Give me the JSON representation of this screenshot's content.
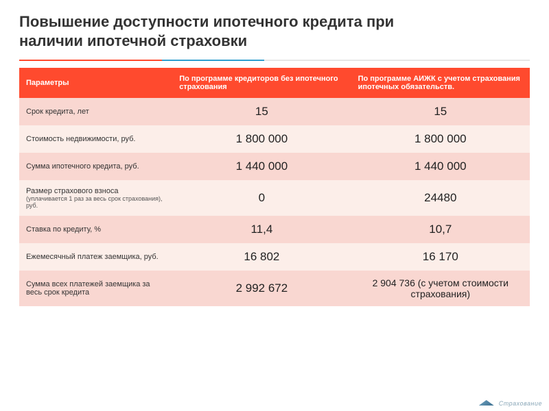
{
  "title_line1": "Повышение доступности ипотечного кредита при",
  "title_line2": "наличии ипотечной страховки",
  "underline_colors": {
    "seg1": "#ff4a2e",
    "seg2": "#2f9fcf",
    "seg3": "#e6e6e6"
  },
  "table": {
    "header_bg": "#ff4a2e",
    "row_bg_alt": [
      "#f9d7d1",
      "#fceee9"
    ],
    "col_widths": [
      "30%",
      "35%",
      "35%"
    ],
    "columns": [
      "Параметры",
      "По программе кредиторов без ипотечного страхования",
      "По программе АИЖК с учетом страхования ипотечных обязательств."
    ],
    "rows": [
      {
        "label": "Срок кредита, лет",
        "sub": "",
        "v1": "15",
        "v2": "15"
      },
      {
        "label": "Стоимость недвижимости, руб.",
        "sub": "",
        "v1": "1 800 000",
        "v2": "1 800 000"
      },
      {
        "label": "Сумма ипотечного кредита, руб.",
        "sub": "",
        "v1": "1 440 000",
        "v2": "1 440 000"
      },
      {
        "label": "Размер страхового взноса",
        "sub": "(уплачивается 1 раз за весь срок страхования), руб.",
        "v1": "0",
        "v2": "24480"
      },
      {
        "label": "Ставка по кредиту, %",
        "sub": "",
        "v1": "11,4",
        "v2": "10,7"
      },
      {
        "label": "Ежемесячный платеж заемщика, руб.",
        "sub": "",
        "v1": "16 802",
        "v2": "16 170"
      },
      {
        "label": "Сумма всех платежей заемщика за весь срок кредита",
        "sub": "",
        "v1": "2 992 672",
        "v2": "2 904 736 (с учетом стоимости страхования)"
      }
    ]
  },
  "logo_text": "Страхование"
}
